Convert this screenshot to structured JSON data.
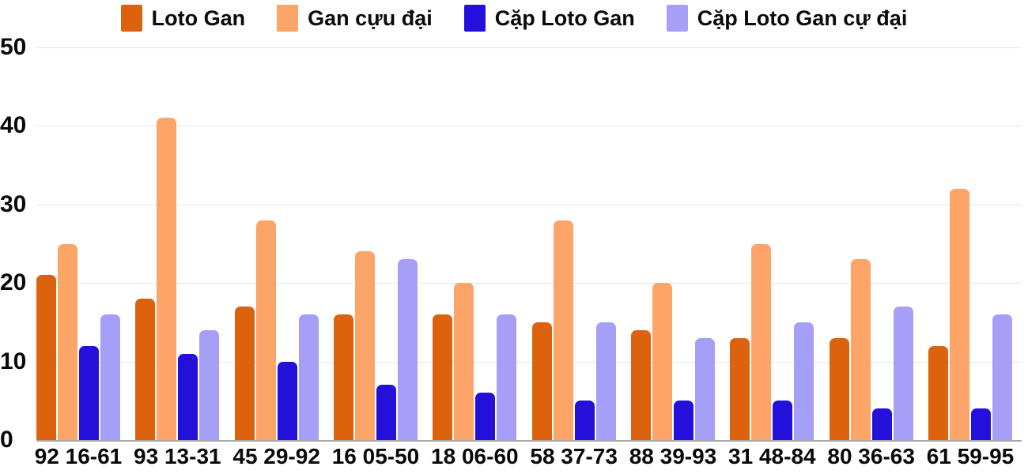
{
  "chart_data": {
    "type": "bar",
    "title": "",
    "xlabel": "",
    "ylabel": "",
    "categories": [
      "92 16-61",
      "93 13-31",
      "45 29-92",
      "16 05-50",
      "18 06-60",
      "58 37-73",
      "88 39-93",
      "31 48-84",
      "80 36-63",
      "61 59-95"
    ],
    "series": [
      {
        "name": "Loto Gan",
        "color": "#DD620E",
        "values": [
          21,
          18,
          17,
          16,
          16,
          15,
          14,
          13,
          13,
          12
        ]
      },
      {
        "name": "Gan cựu đại",
        "color": "#FDA469",
        "values": [
          25,
          41,
          28,
          24,
          20,
          28,
          20,
          25,
          23,
          32
        ]
      },
      {
        "name": "Cặp Loto Gan",
        "color": "#2311DB",
        "values": [
          12,
          11,
          10,
          7,
          6,
          5,
          5,
          5,
          4,
          4
        ]
      },
      {
        "name": "Cặp Loto Gan cự đại",
        "color": "#A69FF8",
        "values": [
          16,
          14,
          16,
          23,
          16,
          15,
          13,
          15,
          17,
          16
        ]
      }
    ],
    "ylim": [
      0,
      50
    ],
    "yticks": [
      0,
      10,
      20,
      30,
      40,
      50
    ],
    "grid": true,
    "legend_position": "top-center"
  },
  "colors": {
    "background": "#FFFFFF",
    "grid": "#E6E6E6",
    "axis": "#A8A8A8",
    "text": "#0A0A0A"
  }
}
